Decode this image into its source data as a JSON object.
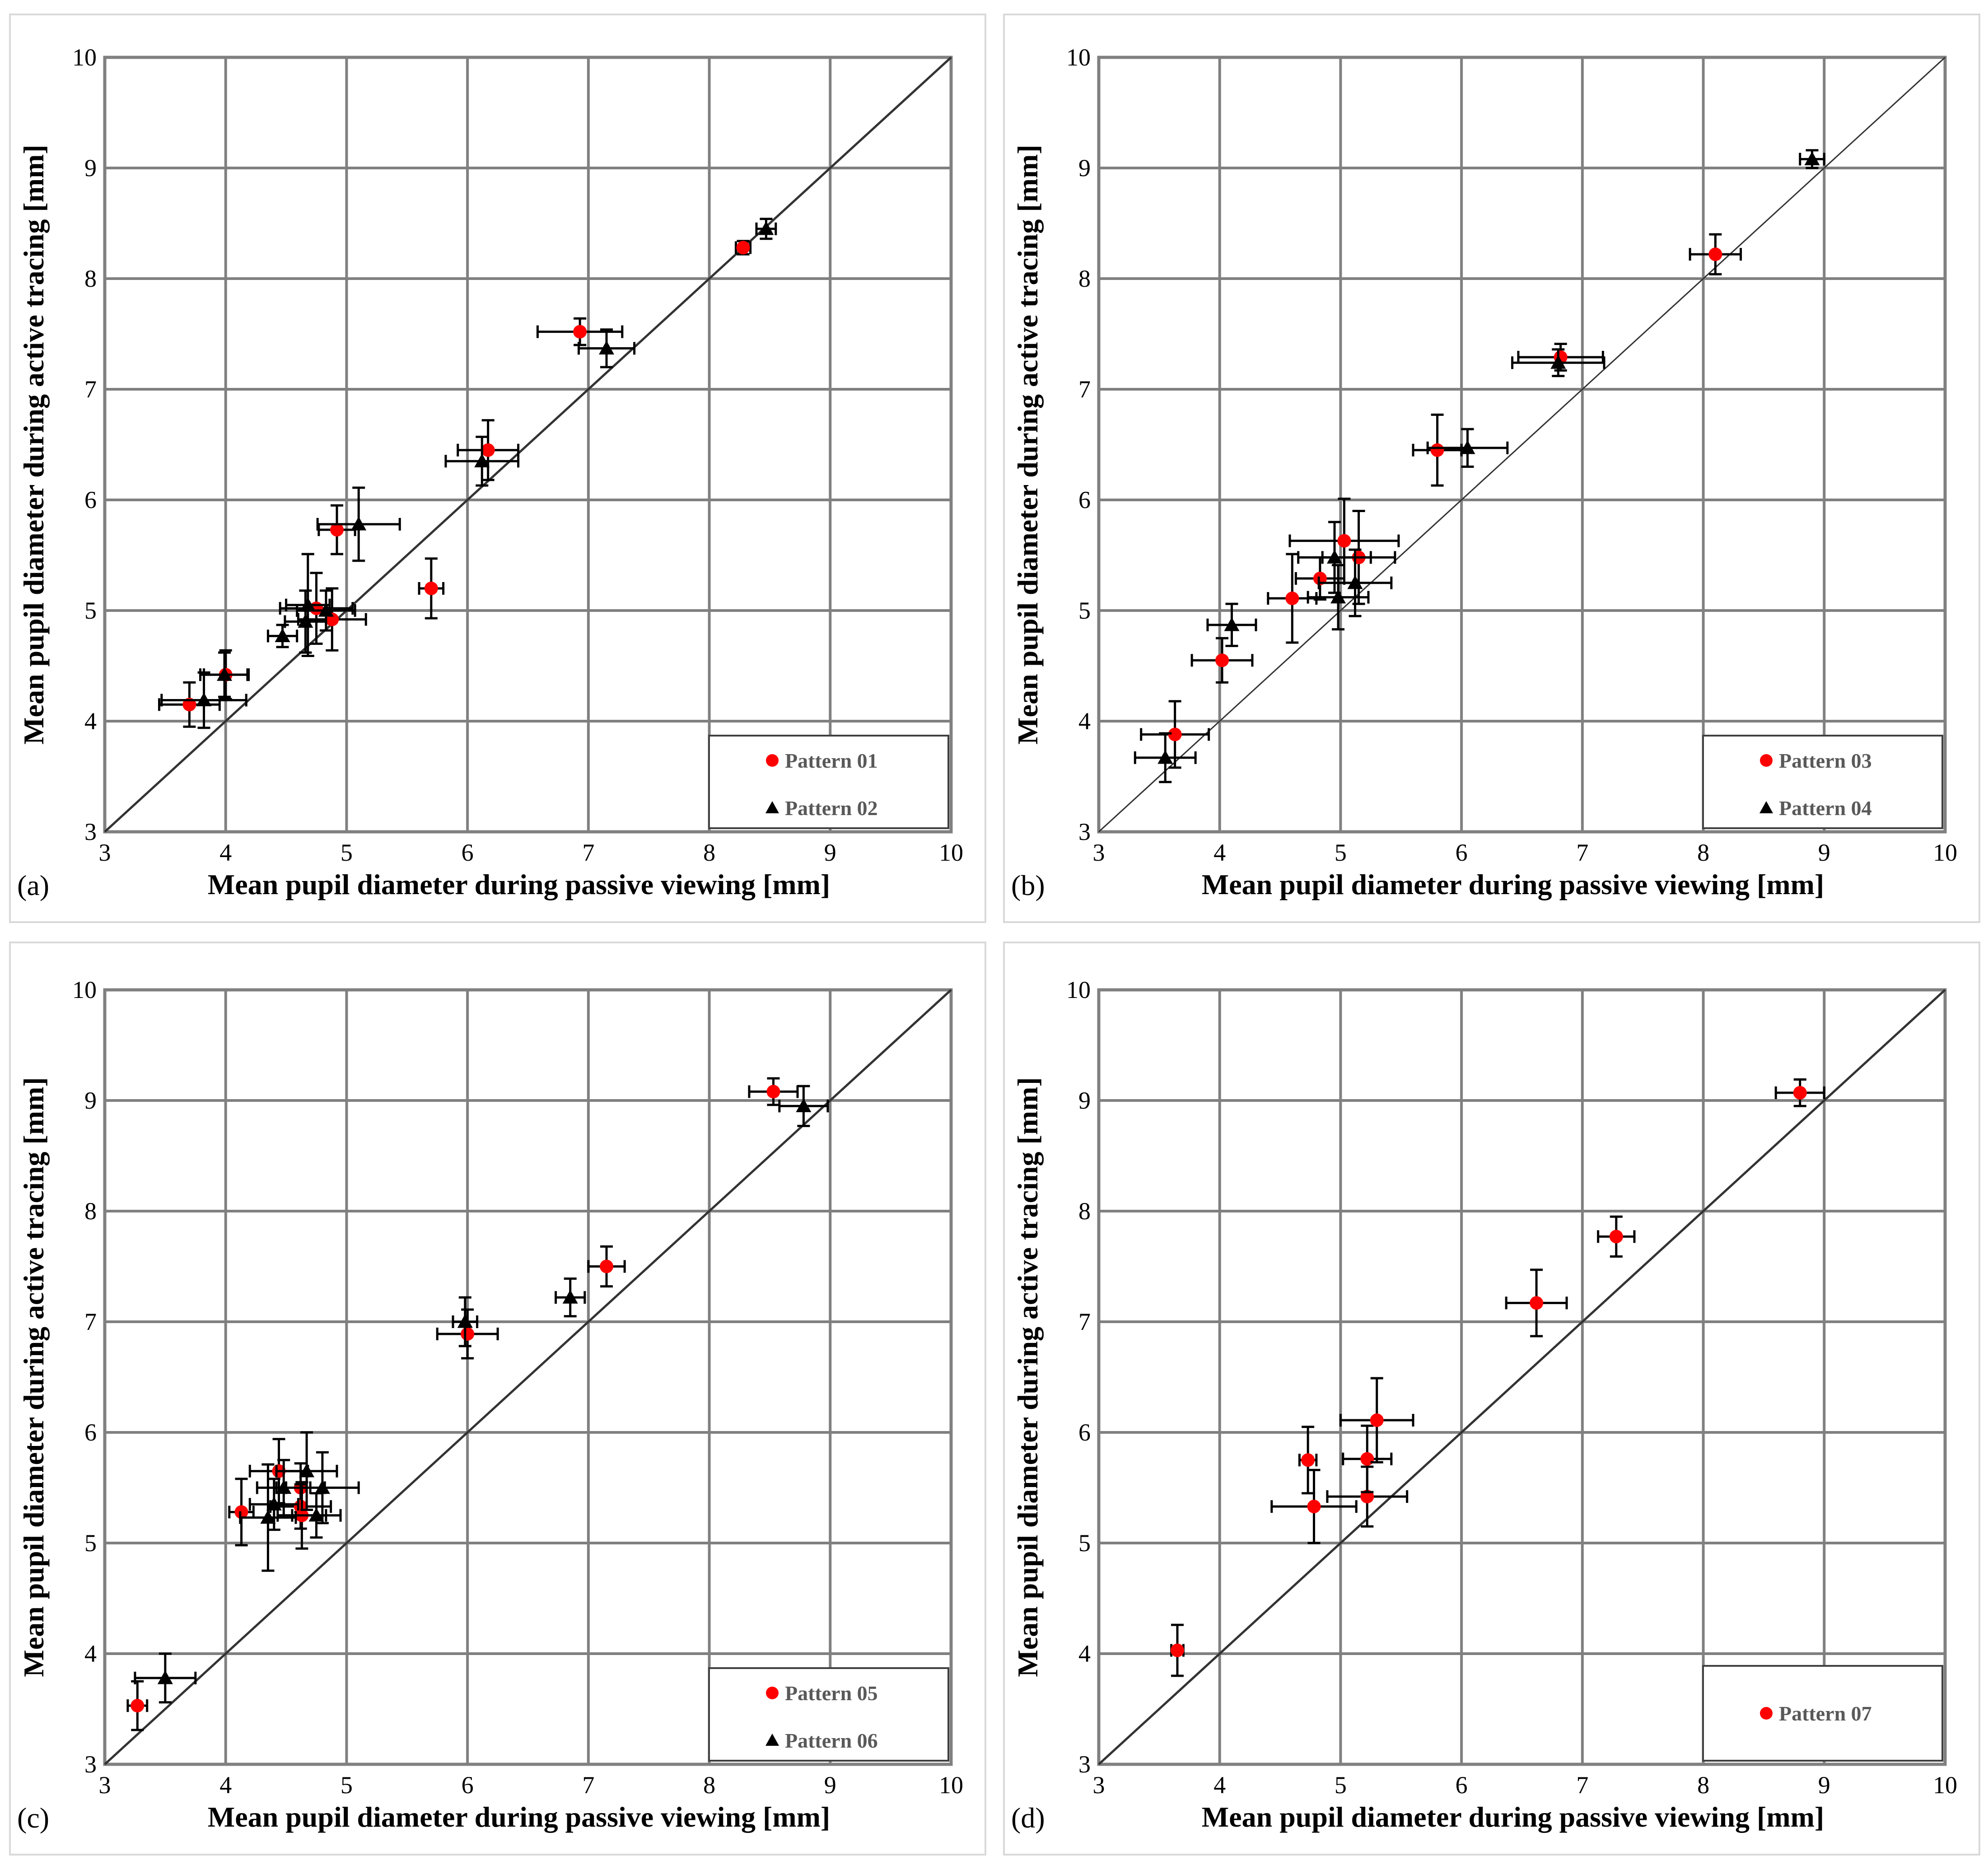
{
  "figure": {
    "x_label": "Mean pupil diameter during passive viewing [mm]",
    "y_label": "Mean pupil diameter during active tracing [mm]"
  },
  "chart_data": [
    {
      "panel_label": "(a)",
      "type": "scatter",
      "xlabel": "Mean pupil diameter during passive viewing [mm]",
      "ylabel": "Mean pupil diameter during active tracing [mm]",
      "xlim": [
        3,
        10
      ],
      "ylim": [
        3,
        10
      ],
      "x_ticks": [
        "3",
        "4",
        "5",
        "6",
        "7",
        "8",
        "9",
        "10"
      ],
      "y_ticks": [
        "3",
        "4",
        "5",
        "6",
        "7",
        "8",
        "9",
        "10"
      ],
      "grid": true,
      "reference_line": "y = x",
      "legend_position": "bottom-right",
      "series": [
        {
          "name": "Pattern 01",
          "marker": "circle",
          "color": "#ff0000",
          "points": [
            {
              "x": 3.7,
              "y": 4.15,
              "xerr": 0.25,
              "yerr": 0.2
            },
            {
              "x": 4.0,
              "y": 4.42,
              "xerr": 0.18,
              "yerr": 0.22
            },
            {
              "x": 4.75,
              "y": 5.02,
              "xerr": 0.3,
              "yerr": 0.32
            },
            {
              "x": 4.88,
              "y": 4.92,
              "xerr": 0.28,
              "yerr": 0.28
            },
            {
              "x": 4.92,
              "y": 5.73,
              "xerr": 0.15,
              "yerr": 0.22
            },
            {
              "x": 5.7,
              "y": 5.2,
              "xerr": 0.1,
              "yerr": 0.27
            },
            {
              "x": 6.17,
              "y": 6.45,
              "xerr": 0.25,
              "yerr": 0.27
            },
            {
              "x": 6.93,
              "y": 7.52,
              "xerr": 0.35,
              "yerr": 0.12
            },
            {
              "x": 8.28,
              "y": 8.28,
              "xerr": 0.06,
              "yerr": 0.06
            }
          ]
        },
        {
          "name": "Pattern 02",
          "marker": "triangle",
          "color": "#000000",
          "points": [
            {
              "x": 3.82,
              "y": 4.19,
              "xerr": 0.35,
              "yerr": 0.25
            },
            {
              "x": 3.99,
              "y": 4.42,
              "xerr": 0.2,
              "yerr": 0.2
            },
            {
              "x": 4.47,
              "y": 4.77,
              "xerr": 0.12,
              "yerr": 0.1
            },
            {
              "x": 4.66,
              "y": 4.9,
              "xerr": 0.17,
              "yerr": 0.28
            },
            {
              "x": 4.68,
              "y": 5.05,
              "xerr": 0.18,
              "yerr": 0.46
            },
            {
              "x": 4.83,
              "y": 5.0,
              "xerr": 0.24,
              "yerr": 0.18
            },
            {
              "x": 5.1,
              "y": 5.78,
              "xerr": 0.34,
              "yerr": 0.33
            },
            {
              "x": 6.12,
              "y": 6.35,
              "xerr": 0.3,
              "yerr": 0.22
            },
            {
              "x": 7.15,
              "y": 7.37,
              "xerr": 0.23,
              "yerr": 0.17
            },
            {
              "x": 8.47,
              "y": 8.45,
              "xerr": 0.08,
              "yerr": 0.09
            }
          ]
        }
      ]
    },
    {
      "panel_label": "(b)",
      "type": "scatter",
      "xlabel": "Mean pupil diameter during passive viewing [mm]",
      "ylabel": "Mean pupil diameter during active tracing [mm]",
      "xlim": [
        3,
        10
      ],
      "ylim": [
        3,
        10
      ],
      "x_ticks": [
        "3",
        "4",
        "5",
        "6",
        "7",
        "8",
        "9",
        "10"
      ],
      "y_ticks": [
        "3",
        "4",
        "5",
        "6",
        "7",
        "8",
        "9",
        "10"
      ],
      "grid": true,
      "reference_line": "y = x",
      "legend_position": "bottom-right",
      "series": [
        {
          "name": "Pattern 03",
          "marker": "circle",
          "color": "#ff0000",
          "points": [
            {
              "x": 3.63,
              "y": 3.88,
              "xerr": 0.28,
              "yerr": 0.3
            },
            {
              "x": 4.02,
              "y": 4.55,
              "xerr": 0.25,
              "yerr": 0.2
            },
            {
              "x": 4.6,
              "y": 5.11,
              "xerr": 0.2,
              "yerr": 0.4
            },
            {
              "x": 4.83,
              "y": 5.29,
              "xerr": 0.2,
              "yerr": 0.19
            },
            {
              "x": 5.03,
              "y": 5.63,
              "xerr": 0.45,
              "yerr": 0.38
            },
            {
              "x": 5.15,
              "y": 5.48,
              "xerr": 0.3,
              "yerr": 0.42
            },
            {
              "x": 5.8,
              "y": 6.45,
              "xerr": 0.2,
              "yerr": 0.32
            },
            {
              "x": 6.82,
              "y": 7.29,
              "xerr": 0.35,
              "yerr": 0.12
            },
            {
              "x": 8.1,
              "y": 8.22,
              "xerr": 0.21,
              "yerr": 0.18
            }
          ]
        },
        {
          "name": "Pattern 04",
          "marker": "triangle",
          "color": "#000000",
          "points": [
            {
              "x": 3.55,
              "y": 3.67,
              "xerr": 0.25,
              "yerr": 0.22
            },
            {
              "x": 4.1,
              "y": 4.87,
              "xerr": 0.2,
              "yerr": 0.19
            },
            {
              "x": 4.95,
              "y": 5.48,
              "xerr": 0.3,
              "yerr": 0.32
            },
            {
              "x": 4.98,
              "y": 5.12,
              "xerr": 0.25,
              "yerr": 0.29
            },
            {
              "x": 5.12,
              "y": 5.25,
              "xerr": 0.3,
              "yerr": 0.3
            },
            {
              "x": 6.05,
              "y": 6.47,
              "xerr": 0.33,
              "yerr": 0.17
            },
            {
              "x": 6.8,
              "y": 7.24,
              "xerr": 0.38,
              "yerr": 0.12
            },
            {
              "x": 8.9,
              "y": 9.08,
              "xerr": 0.1,
              "yerr": 0.08
            }
          ]
        }
      ]
    },
    {
      "panel_label": "(c)",
      "type": "scatter",
      "xlabel": "Mean pupil diameter during passive viewing [mm]",
      "ylabel": "Mean pupil diameter during active tracing [mm]",
      "xlim": [
        3,
        10
      ],
      "ylim": [
        3,
        10
      ],
      "x_ticks": [
        "3",
        "4",
        "5",
        "6",
        "7",
        "8",
        "9",
        "10"
      ],
      "y_ticks": [
        "3",
        "4",
        "5",
        "6",
        "7",
        "8",
        "9",
        "10"
      ],
      "grid": true,
      "reference_line": "y = x",
      "legend_position": "bottom-right",
      "series": [
        {
          "name": "Pattern 05",
          "marker": "circle",
          "color": "#ff0000",
          "points": [
            {
              "x": 3.27,
              "y": 3.53,
              "xerr": 0.08,
              "yerr": 0.22
            },
            {
              "x": 4.13,
              "y": 5.28,
              "xerr": 0.1,
              "yerr": 0.3
            },
            {
              "x": 4.44,
              "y": 5.65,
              "xerr": 0.24,
              "yerr": 0.29
            },
            {
              "x": 4.62,
              "y": 5.5,
              "xerr": 0.2,
              "yerr": 0.22
            },
            {
              "x": 4.62,
              "y": 5.33,
              "xerr": 0.25,
              "yerr": 0.2
            },
            {
              "x": 4.63,
              "y": 5.25,
              "xerr": 0.2,
              "yerr": 0.3
            },
            {
              "x": 6.0,
              "y": 6.89,
              "xerr": 0.25,
              "yerr": 0.22
            },
            {
              "x": 7.15,
              "y": 7.5,
              "xerr": 0.15,
              "yerr": 0.18
            },
            {
              "x": 8.53,
              "y": 9.08,
              "xerr": 0.2,
              "yerr": 0.12
            }
          ]
        },
        {
          "name": "Pattern 06",
          "marker": "triangle",
          "color": "#000000",
          "points": [
            {
              "x": 3.5,
              "y": 3.78,
              "xerr": 0.25,
              "yerr": 0.22
            },
            {
              "x": 4.35,
              "y": 5.23,
              "xerr": 0.23,
              "yerr": 0.48
            },
            {
              "x": 4.4,
              "y": 5.35,
              "xerr": 0.2,
              "yerr": 0.23
            },
            {
              "x": 4.48,
              "y": 5.5,
              "xerr": 0.22,
              "yerr": 0.25
            },
            {
              "x": 4.67,
              "y": 5.65,
              "xerr": 0.25,
              "yerr": 0.35
            },
            {
              "x": 4.75,
              "y": 5.25,
              "xerr": 0.2,
              "yerr": 0.2
            },
            {
              "x": 4.8,
              "y": 5.5,
              "xerr": 0.3,
              "yerr": 0.32
            },
            {
              "x": 5.98,
              "y": 7.0,
              "xerr": 0.1,
              "yerr": 0.22
            },
            {
              "x": 6.85,
              "y": 7.22,
              "xerr": 0.12,
              "yerr": 0.17
            },
            {
              "x": 8.78,
              "y": 8.95,
              "xerr": 0.2,
              "yerr": 0.18
            }
          ]
        }
      ]
    },
    {
      "panel_label": "(d)",
      "type": "scatter",
      "xlabel": "Mean pupil diameter during passive viewing [mm]",
      "ylabel": "Mean pupil diameter during active tracing [mm]",
      "xlim": [
        3,
        10
      ],
      "ylim": [
        3,
        10
      ],
      "x_ticks": [
        "3",
        "4",
        "5",
        "6",
        "7",
        "8",
        "9",
        "10"
      ],
      "y_ticks": [
        "3",
        "4",
        "5",
        "6",
        "7",
        "8",
        "9",
        "10"
      ],
      "grid": true,
      "reference_line": "y = x",
      "legend_position": "bottom-right",
      "series": [
        {
          "name": "Pattern 07",
          "marker": "circle",
          "color": "#ff0000",
          "points": [
            {
              "x": 3.65,
              "y": 4.03,
              "xerr": 0.05,
              "yerr": 0.23
            },
            {
              "x": 4.73,
              "y": 5.75,
              "xerr": 0.07,
              "yerr": 0.3
            },
            {
              "x": 4.78,
              "y": 5.33,
              "xerr": 0.35,
              "yerr": 0.33
            },
            {
              "x": 5.22,
              "y": 5.42,
              "xerr": 0.33,
              "yerr": 0.27
            },
            {
              "x": 5.22,
              "y": 5.76,
              "xerr": 0.2,
              "yerr": 0.3
            },
            {
              "x": 5.3,
              "y": 6.11,
              "xerr": 0.3,
              "yerr": 0.38
            },
            {
              "x": 6.62,
              "y": 7.17,
              "xerr": 0.25,
              "yerr": 0.3
            },
            {
              "x": 7.28,
              "y": 7.77,
              "xerr": 0.15,
              "yerr": 0.18
            },
            {
              "x": 8.8,
              "y": 9.07,
              "xerr": 0.2,
              "yerr": 0.12
            }
          ]
        }
      ]
    }
  ]
}
